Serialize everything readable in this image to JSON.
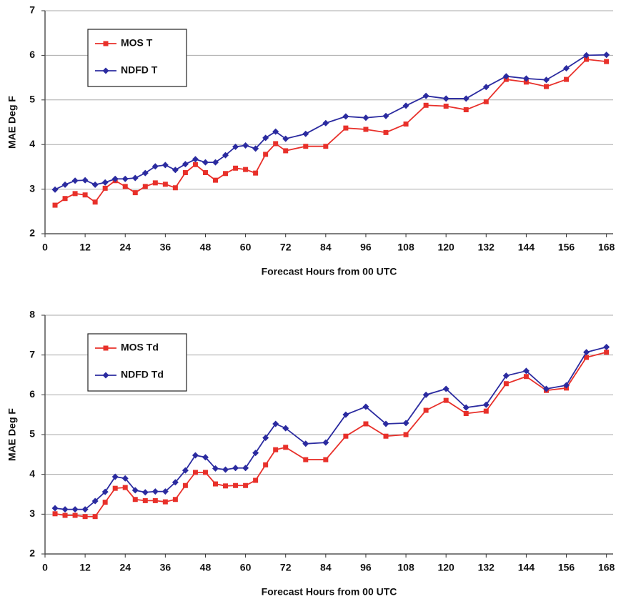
{
  "chart_data": [
    {
      "type": "line",
      "xlabel": "Forecast Hours from 00 UTC",
      "ylabel": "MAE Deg F",
      "x": [
        3,
        6,
        9,
        12,
        15,
        18,
        21,
        24,
        27,
        30,
        33,
        36,
        39,
        42,
        45,
        48,
        51,
        54,
        57,
        60,
        63,
        66,
        69,
        72,
        78,
        84,
        90,
        96,
        102,
        108,
        114,
        120,
        126,
        132,
        138,
        144,
        150,
        156,
        162,
        168
      ],
      "series": [
        {
          "name": "MOS T",
          "color": "#e8302a",
          "marker": "square",
          "values": [
            2.64,
            2.79,
            2.9,
            2.87,
            2.71,
            3.02,
            3.19,
            3.06,
            2.92,
            3.06,
            3.14,
            3.11,
            3.03,
            3.37,
            3.55,
            3.37,
            3.2,
            3.35,
            3.47,
            3.44,
            3.36,
            3.78,
            4.02,
            3.86,
            3.96,
            3.96,
            4.37,
            4.34,
            4.27,
            4.46,
            4.88,
            4.86,
            4.78,
            4.96,
            5.46,
            5.4,
            5.3,
            5.46,
            5.91,
            5.86
          ]
        },
        {
          "name": "NDFD T",
          "color": "#2b2ba0",
          "marker": "diamond",
          "values": [
            2.99,
            3.1,
            3.19,
            3.2,
            3.1,
            3.15,
            3.23,
            3.23,
            3.25,
            3.36,
            3.51,
            3.54,
            3.43,
            3.56,
            3.67,
            3.6,
            3.6,
            3.76,
            3.95,
            3.98,
            3.91,
            4.15,
            4.29,
            4.13,
            4.24,
            4.48,
            4.63,
            4.6,
            4.64,
            4.87,
            5.09,
            5.03,
            5.03,
            5.29,
            5.53,
            5.48,
            5.45,
            5.71,
            6.0,
            6.01
          ]
        }
      ],
      "xlim": [
        0,
        170
      ],
      "xticks": [
        0,
        12,
        24,
        36,
        48,
        60,
        72,
        84,
        96,
        108,
        120,
        132,
        144,
        156,
        168
      ],
      "ylim": [
        2,
        7
      ],
      "yticks": [
        2,
        3,
        4,
        5,
        6,
        7
      ],
      "grid": true,
      "legend": "upper left"
    },
    {
      "type": "line",
      "xlabel": "Forecast Hours from 00 UTC",
      "ylabel": "MAE Deg F",
      "x": [
        3,
        6,
        9,
        12,
        15,
        18,
        21,
        24,
        27,
        30,
        33,
        36,
        39,
        42,
        45,
        48,
        51,
        54,
        57,
        60,
        63,
        66,
        69,
        72,
        78,
        84,
        90,
        96,
        102,
        108,
        114,
        120,
        126,
        132,
        138,
        144,
        150,
        156,
        162,
        168
      ],
      "series": [
        {
          "name": "MOS Td",
          "color": "#e8302a",
          "marker": "square",
          "values": [
            3.01,
            2.97,
            2.97,
            2.94,
            2.94,
            3.3,
            3.65,
            3.67,
            3.37,
            3.34,
            3.34,
            3.31,
            3.37,
            3.72,
            4.05,
            4.05,
            3.76,
            3.71,
            3.72,
            3.72,
            3.85,
            4.24,
            4.62,
            4.68,
            4.37,
            4.37,
            4.96,
            5.27,
            4.96,
            5.0,
            5.61,
            5.86,
            5.53,
            5.59,
            6.28,
            6.46,
            6.11,
            6.17,
            6.94,
            7.07
          ]
        },
        {
          "name": "NDFD Td",
          "color": "#2b2ba0",
          "marker": "diamond",
          "values": [
            3.15,
            3.12,
            3.12,
            3.12,
            3.33,
            3.56,
            3.94,
            3.9,
            3.6,
            3.55,
            3.57,
            3.57,
            3.8,
            4.1,
            4.48,
            4.43,
            4.15,
            4.12,
            4.16,
            4.16,
            4.54,
            4.92,
            5.27,
            5.16,
            4.77,
            4.8,
            5.5,
            5.7,
            5.27,
            5.29,
            6.0,
            6.15,
            5.68,
            5.75,
            6.48,
            6.6,
            6.15,
            6.24,
            7.07,
            7.2
          ]
        }
      ],
      "xlim": [
        0,
        170
      ],
      "xticks": [
        0,
        12,
        24,
        36,
        48,
        60,
        72,
        84,
        96,
        108,
        120,
        132,
        144,
        156,
        168
      ],
      "ylim": [
        2,
        8
      ],
      "yticks": [
        2,
        3,
        4,
        5,
        6,
        7,
        8
      ],
      "grid": true,
      "legend": "upper left"
    }
  ]
}
